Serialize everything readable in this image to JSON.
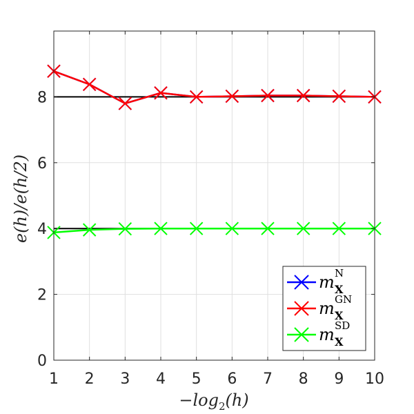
{
  "chart_data": {
    "type": "line",
    "xlabel": "−log₂(h)",
    "ylabel": "e(h)/e(h/2)",
    "xlim": [
      1,
      10
    ],
    "ylim": [
      0,
      10
    ],
    "xticks": [
      "1",
      "2",
      "3",
      "4",
      "5",
      "6",
      "7",
      "8",
      "9",
      "10"
    ],
    "yticks": [
      "0",
      "2",
      "4",
      "6",
      "8"
    ],
    "grid": true,
    "legend_position": "bottom-right",
    "x": [
      1,
      2,
      3,
      4,
      5,
      6,
      7,
      8,
      9,
      10
    ],
    "reference_lines": [
      8,
      4
    ],
    "series": [
      {
        "name": "m_X^N",
        "base": "m",
        "sup": "N",
        "sub": "X",
        "color": "#0000ff",
        "values": [
          8.78,
          8.38,
          7.8,
          8.12,
          8.0,
          8.02,
          8.04,
          8.04,
          8.02,
          8.0
        ]
      },
      {
        "name": "m_X^GN",
        "base": "m",
        "sup": "GN",
        "sub": "X",
        "color": "#ff0000",
        "values": [
          8.78,
          8.38,
          7.8,
          8.12,
          8.0,
          8.02,
          8.04,
          8.04,
          8.02,
          8.0
        ]
      },
      {
        "name": "m_X^SD",
        "base": "m",
        "sup": "SD",
        "sub": "X",
        "color": "#00ff00",
        "values": [
          3.88,
          3.96,
          3.99,
          4.0,
          4.0,
          4.0,
          4.0,
          4.0,
          4.0,
          4.0
        ]
      }
    ]
  }
}
